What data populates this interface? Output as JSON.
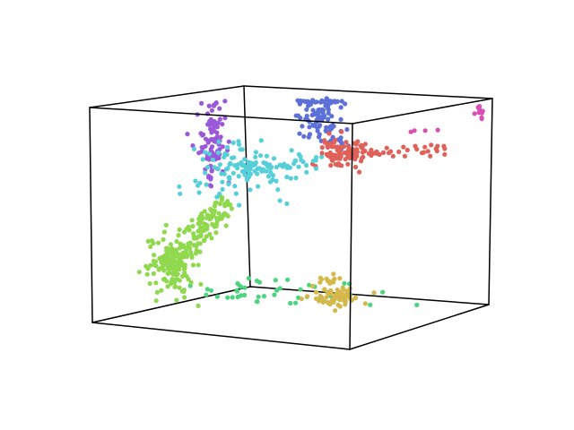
{
  "chart_data": {
    "type": "scatter",
    "projection": "3d",
    "title": "",
    "axes_visible": false,
    "grid": false,
    "box": true,
    "legend": "none",
    "colors": {
      "box": "#000000",
      "background": "#ffffff"
    },
    "clusters": [
      {
        "color": "#5c70d8",
        "count": 110,
        "center": [
          -0.08,
          0.55,
          0.9
        ],
        "spread": [
          0.08,
          0.08,
          0.14
        ],
        "tail": [
          [
            0.0,
            0.7,
            0.55
          ],
          0.2
        ]
      },
      {
        "color": "#9b59d9",
        "count": 90,
        "center": [
          -0.75,
          0.2,
          0.65
        ],
        "spread": [
          0.05,
          0.05,
          0.22
        ]
      },
      {
        "color": "#e0615a",
        "count": 130,
        "center": [
          0.25,
          0.35,
          0.55
        ],
        "spread": [
          0.08,
          0.08,
          0.07
        ],
        "tail": [
          [
            0.75,
            0.9,
            0.55
          ],
          0.25
        ]
      },
      {
        "color": "#d84fb5",
        "count": 14,
        "center": [
          1.0,
          1.0,
          0.92
        ],
        "spread": [
          0.05,
          0.05,
          0.05
        ],
        "tail": [
          [
            0.55,
            0.7,
            0.7
          ],
          0.3
        ]
      },
      {
        "color": "#57cfd8",
        "count": 140,
        "center": [
          -0.45,
          0.05,
          0.35
        ],
        "spread": [
          0.18,
          0.12,
          0.15
        ],
        "tail": [
          [
            0.0,
            0.25,
            0.5
          ],
          0.4
        ]
      },
      {
        "color": "#90d84e",
        "count": 260,
        "center": [
          -0.82,
          -0.25,
          -0.55
        ],
        "spread": [
          0.09,
          0.08,
          0.15
        ],
        "tail": [
          [
            -0.5,
            -0.05,
            0.05
          ],
          0.5
        ]
      },
      {
        "color": "#4cd47f",
        "count": 45,
        "center": [
          -0.05,
          -0.05,
          -0.8
        ],
        "spread": [
          0.35,
          0.25,
          0.05
        ]
      },
      {
        "color": "#d4b84a",
        "count": 75,
        "center": [
          0.6,
          -0.3,
          -0.75
        ],
        "spread": [
          0.08,
          0.08,
          0.05
        ],
        "tail": [
          [
            0.35,
            -0.05,
            -0.6
          ],
          0.35
        ]
      }
    ]
  }
}
